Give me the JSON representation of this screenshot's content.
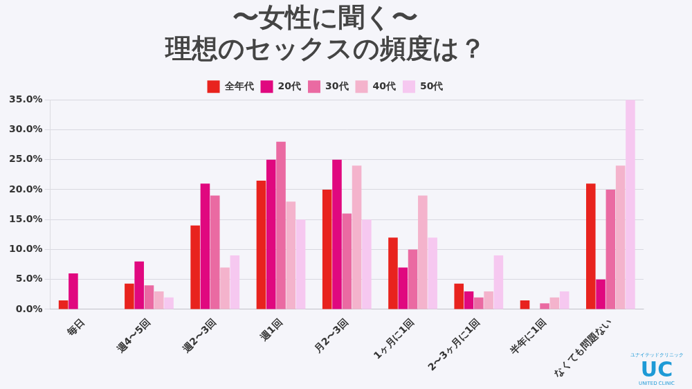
{
  "chart_data": {
    "type": "bar",
    "title": [
      "〜女性に聞く〜",
      "理想のセックスの頻度は？"
    ],
    "categories": [
      "毎日",
      "週4〜5回",
      "週2〜3回",
      "週1回",
      "月2〜3回",
      "1ヶ月に1回",
      "2〜3ヶ月に1回",
      "半年に1回",
      "なくても問題ない"
    ],
    "series": [
      {
        "name": "全年代",
        "color": "#e8231e",
        "values": [
          1.5,
          4.3,
          14,
          21.5,
          20,
          12,
          4.3,
          1.5,
          21
        ]
      },
      {
        "name": "20代",
        "color": "#e0087f",
        "values": [
          6,
          8,
          21,
          25,
          25,
          7,
          3,
          0,
          5
        ]
      },
      {
        "name": "30代",
        "color": "#ea6aa2",
        "values": [
          0,
          4,
          19,
          28,
          16,
          10,
          2,
          1,
          20
        ]
      },
      {
        "name": "40代",
        "color": "#f4b3cc",
        "values": [
          0,
          3,
          7,
          18,
          24,
          19,
          3,
          2,
          24
        ]
      },
      {
        "name": "50代",
        "color": "#f6c8f0",
        "values": [
          0,
          2,
          9,
          15,
          15,
          12,
          9,
          3,
          35
        ]
      }
    ],
    "ylim": [
      0,
      35
    ],
    "yticks": [
      {
        "value": 0,
        "label": "0.0%"
      },
      {
        "value": 5,
        "label": "5.0%"
      },
      {
        "value": 10,
        "label": "10.0%"
      },
      {
        "value": 15,
        "label": "15.0%"
      },
      {
        "value": 20,
        "label": "20.0%"
      },
      {
        "value": 25,
        "label": "25.0%"
      },
      {
        "value": 30,
        "label": "30.0%"
      },
      {
        "value": 35,
        "label": "35.0%"
      }
    ],
    "grid": true,
    "legend": "top",
    "annotations": [
      "ユナイテッドクリニック",
      "UC",
      "UNITED CLINIC"
    ]
  }
}
